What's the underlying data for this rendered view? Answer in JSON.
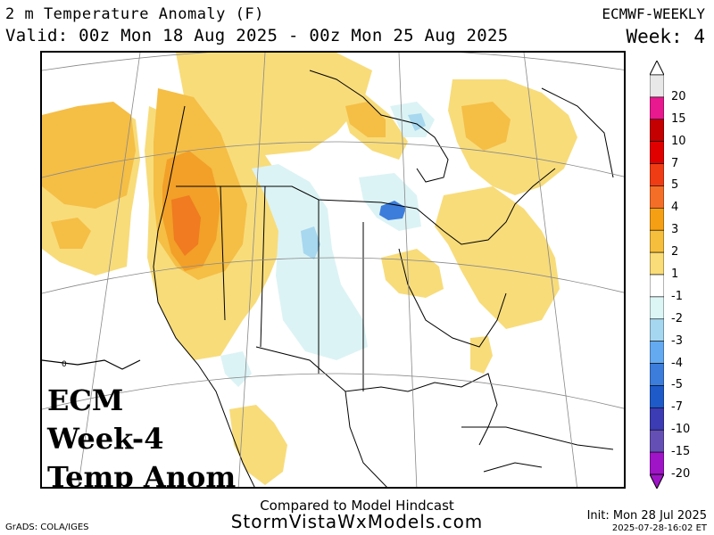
{
  "header": {
    "title": "2 m Temperature Anomaly (F)",
    "valid": "Valid: 00z Mon 18 Aug 2025 - 00z Mon 25 Aug 2025",
    "model": "ECMWF-WEEKLY",
    "week": "Week: 4"
  },
  "map": {
    "overlay_lines": [
      "ECM",
      "Week-4",
      "Temp Anom"
    ],
    "contour_label": "0",
    "region": "North America"
  },
  "colorbar": {
    "labels": [
      "20",
      "15",
      "10",
      "7",
      "5",
      "4",
      "3",
      "2",
      "1",
      "-1",
      "-2",
      "-3",
      "-4",
      "-5",
      "-7",
      "-10",
      "-15",
      "-20"
    ],
    "colors": [
      "#e8e8e8",
      "#e8198f",
      "#c40000",
      "#e00000",
      "#f03c14",
      "#f56e28",
      "#f5a014",
      "#f5be3c",
      "#fadc78",
      "#ffffff",
      "#dcf5f5",
      "#a5d7f0",
      "#64aaf0",
      "#3c7ddc",
      "#1e5ac8",
      "#3c3cb4",
      "#6450b4",
      "#a014c8"
    ]
  },
  "footer": {
    "line1": "Compared to Model Hindcast",
    "line2": "StormVistaWxModels.com",
    "credit": "GrADS: COLA/IGES",
    "init": "Init: Mon 28 Jul 2025",
    "timestamp": "2025-07-28-16:02 ET"
  },
  "colors": {
    "anomaly_1_2": "#f8dc7a",
    "anomaly_2_3": "#f5be45",
    "anomaly_3_4": "#f2a028",
    "anomaly_4_5": "#f07b20",
    "anomaly_neg_1_2": "#dcf3f5",
    "anomaly_neg_2_3": "#a7d8ef",
    "anomaly_neg_4": "#3c7ddc"
  }
}
